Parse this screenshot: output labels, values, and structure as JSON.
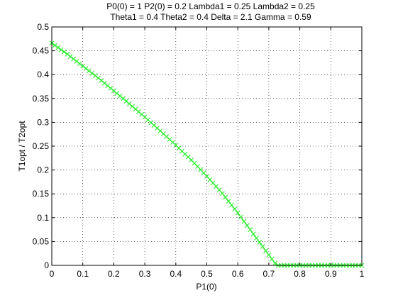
{
  "chart_data": {
    "type": "line",
    "title_lines": [
      "P0(0) = 1 P2(0) = 0.2 Lambda1 = 0.25 Lambda2 = 0.25",
      "Theta1 = 0.4 Theta2 = 0.4 Delta = 2.1 Gamma = 0.59"
    ],
    "xlabel": "P1(0)",
    "ylabel": "T1opt / T2opt",
    "xlim": [
      0,
      1
    ],
    "ylim": [
      0,
      0.5
    ],
    "xticks": [
      "0",
      "0.1",
      "0.2",
      "0.3",
      "0.4",
      "0.5",
      "0.6",
      "0.7",
      "0.8",
      "0.9",
      "1"
    ],
    "yticks": [
      "0",
      "0.05",
      "0.1",
      "0.15",
      "0.2",
      "0.25",
      "0.3",
      "0.35",
      "0.4",
      "0.45",
      "0.5"
    ],
    "grid": true,
    "marker": "x",
    "color": "#33ee33",
    "series": [
      {
        "x": [
          0.0,
          0.05,
          0.1,
          0.15,
          0.2,
          0.25,
          0.3,
          0.35,
          0.4,
          0.45,
          0.5,
          0.55,
          0.6,
          0.65,
          0.7,
          0.725,
          0.75,
          0.8,
          0.85,
          0.9,
          0.95,
          1.0
        ],
        "values": [
          0.466,
          0.443,
          0.418,
          0.393,
          0.366,
          0.339,
          0.311,
          0.282,
          0.252,
          0.221,
          0.187,
          0.151,
          0.11,
          0.066,
          0.022,
          0.0,
          0.0,
          0.0,
          0.0,
          0.0,
          0.0,
          0.0
        ]
      }
    ]
  }
}
